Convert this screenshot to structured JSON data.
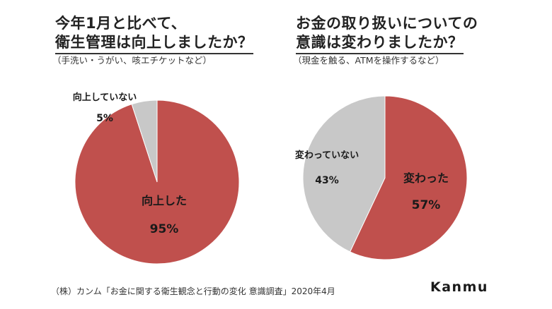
{
  "chart_data": [
    {
      "type": "pie",
      "title_line1": "今年1月と比べて、",
      "title_line2": "衛生管理は向上しましたか？",
      "subtitle": "（手洗い・うがい、咳エチケットなど）",
      "slices": [
        {
          "label": "向上した",
          "value": 95,
          "value_text": "95%",
          "color": "#c0504d"
        },
        {
          "label": "向上していない",
          "value": 5,
          "value_text": "5%",
          "color": "#c8c8c8"
        }
      ]
    },
    {
      "type": "pie",
      "title_line1": "お金の取り扱いについての",
      "title_line2": "意識は変わりましたか？",
      "subtitle": "（現金を触る、ATMを操作するなど）",
      "slices": [
        {
          "label": "変わった",
          "value": 57,
          "value_text": "57%",
          "color": "#c0504d"
        },
        {
          "label": "変わっていない",
          "value": 43,
          "value_text": "43%",
          "color": "#c8c8c8"
        }
      ]
    }
  ],
  "footer": "（株）カンム「お金に関する衛生観念と行動の変化 意識調査」2020年4月",
  "brand": "Kanmu"
}
